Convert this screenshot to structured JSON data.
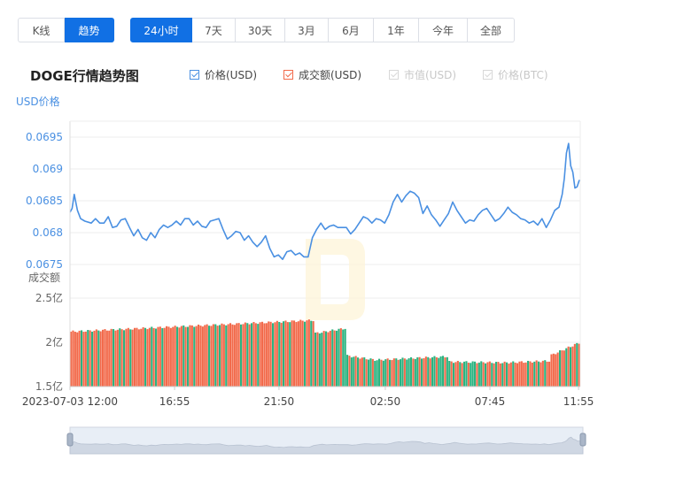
{
  "mode_tabs": [
    {
      "label": "K线",
      "active": false
    },
    {
      "label": "趋势",
      "active": true
    }
  ],
  "range_tabs": [
    {
      "label": "24小时",
      "active": true
    },
    {
      "label": "7天",
      "active": false
    },
    {
      "label": "30天",
      "active": false
    },
    {
      "label": "3月",
      "active": false
    },
    {
      "label": "6月",
      "active": false
    },
    {
      "label": "1年",
      "active": false
    },
    {
      "label": "今年",
      "active": false
    },
    {
      "label": "全部",
      "active": false
    }
  ],
  "colors": {
    "price_line": "#4a90e2",
    "volume_up": "#2bb380",
    "volume_down": "#f26a4b",
    "accent": "#1170e4"
  },
  "chart_data": {
    "title": "DOGE行情趋势图",
    "type": "line",
    "legend": [
      {
        "label": "价格(USD)",
        "checked": true,
        "color": "#4a90e2"
      },
      {
        "label": "成交额(USD)",
        "checked": true,
        "color": "#f26a4b"
      },
      {
        "label": "市值(USD)",
        "checked": false,
        "color": "#cccccc"
      },
      {
        "label": "价格(BTC)",
        "checked": false,
        "color": "#cccccc"
      }
    ],
    "price_axis": {
      "label": "USD价格",
      "ticks": [
        "0.0695",
        "0.069",
        "0.0685",
        "0.068",
        "0.0675"
      ],
      "range": [
        0.06725,
        0.06975
      ]
    },
    "volume_axis": {
      "label": "成交额",
      "ticks": [
        "2.5亿",
        "2亿",
        "1.5亿"
      ],
      "range": [
        1.5,
        2.5
      ]
    },
    "x_ticks": [
      "2023-07-03 12:00",
      "16:55",
      "21:50",
      "02:50",
      "07:45",
      "11:55"
    ],
    "x_range_hours": [
      0,
      24
    ],
    "x_tick_hours": [
      0,
      4.92,
      9.83,
      14.83,
      19.75,
      23.92
    ],
    "price_series": [
      [
        0.0,
        0.06832
      ],
      [
        0.1,
        0.06838
      ],
      [
        0.2,
        0.0686
      ],
      [
        0.35,
        0.06835
      ],
      [
        0.5,
        0.06822
      ],
      [
        0.7,
        0.06818
      ],
      [
        1.0,
        0.06815
      ],
      [
        1.2,
        0.06822
      ],
      [
        1.4,
        0.06815
      ],
      [
        1.6,
        0.06815
      ],
      [
        1.8,
        0.06825
      ],
      [
        2.0,
        0.06808
      ],
      [
        2.2,
        0.0681
      ],
      [
        2.4,
        0.0682
      ],
      [
        2.6,
        0.06822
      ],
      [
        2.8,
        0.06808
      ],
      [
        3.0,
        0.06795
      ],
      [
        3.2,
        0.06805
      ],
      [
        3.4,
        0.06792
      ],
      [
        3.6,
        0.06788
      ],
      [
        3.8,
        0.068
      ],
      [
        4.0,
        0.06792
      ],
      [
        4.2,
        0.06805
      ],
      [
        4.4,
        0.06812
      ],
      [
        4.6,
        0.06808
      ],
      [
        4.8,
        0.06812
      ],
      [
        5.0,
        0.06818
      ],
      [
        5.2,
        0.06812
      ],
      [
        5.4,
        0.06822
      ],
      [
        5.6,
        0.06822
      ],
      [
        5.8,
        0.06812
      ],
      [
        6.0,
        0.06818
      ],
      [
        6.2,
        0.0681
      ],
      [
        6.4,
        0.06808
      ],
      [
        6.6,
        0.06818
      ],
      [
        6.8,
        0.0682
      ],
      [
        7.0,
        0.06822
      ],
      [
        7.2,
        0.06805
      ],
      [
        7.4,
        0.0679
      ],
      [
        7.6,
        0.06795
      ],
      [
        7.8,
        0.06802
      ],
      [
        8.0,
        0.068
      ],
      [
        8.2,
        0.06788
      ],
      [
        8.4,
        0.06795
      ],
      [
        8.6,
        0.06785
      ],
      [
        8.8,
        0.06778
      ],
      [
        9.0,
        0.06785
      ],
      [
        9.2,
        0.06795
      ],
      [
        9.4,
        0.06775
      ],
      [
        9.6,
        0.06762
      ],
      [
        9.8,
        0.06765
      ],
      [
        10.0,
        0.06758
      ],
      [
        10.2,
        0.0677
      ],
      [
        10.4,
        0.06772
      ],
      [
        10.6,
        0.06765
      ],
      [
        10.8,
        0.06768
      ],
      [
        11.0,
        0.06762
      ],
      [
        11.2,
        0.06762
      ],
      [
        11.4,
        0.06792
      ],
      [
        11.6,
        0.06805
      ],
      [
        11.8,
        0.06815
      ],
      [
        12.0,
        0.06805
      ],
      [
        12.2,
        0.0681
      ],
      [
        12.4,
        0.06812
      ],
      [
        12.6,
        0.06808
      ],
      [
        12.8,
        0.06808
      ],
      [
        13.0,
        0.06808
      ],
      [
        13.2,
        0.06798
      ],
      [
        13.4,
        0.06805
      ],
      [
        13.6,
        0.06815
      ],
      [
        13.8,
        0.06825
      ],
      [
        14.0,
        0.06822
      ],
      [
        14.2,
        0.06815
      ],
      [
        14.4,
        0.06822
      ],
      [
        14.6,
        0.0682
      ],
      [
        14.8,
        0.06815
      ],
      [
        15.0,
        0.06828
      ],
      [
        15.2,
        0.06848
      ],
      [
        15.4,
        0.0686
      ],
      [
        15.6,
        0.06848
      ],
      [
        15.8,
        0.06858
      ],
      [
        16.0,
        0.06865
      ],
      [
        16.2,
        0.06862
      ],
      [
        16.4,
        0.06855
      ],
      [
        16.6,
        0.0683
      ],
      [
        16.8,
        0.06842
      ],
      [
        17.0,
        0.06828
      ],
      [
        17.2,
        0.0682
      ],
      [
        17.4,
        0.0681
      ],
      [
        17.6,
        0.0682
      ],
      [
        17.8,
        0.0683
      ],
      [
        18.0,
        0.06848
      ],
      [
        18.2,
        0.06835
      ],
      [
        18.4,
        0.06825
      ],
      [
        18.6,
        0.06815
      ],
      [
        18.8,
        0.0682
      ],
      [
        19.0,
        0.06818
      ],
      [
        19.2,
        0.06828
      ],
      [
        19.4,
        0.06835
      ],
      [
        19.6,
        0.06838
      ],
      [
        19.8,
        0.06828
      ],
      [
        20.0,
        0.06818
      ],
      [
        20.2,
        0.06822
      ],
      [
        20.4,
        0.0683
      ],
      [
        20.6,
        0.0684
      ],
      [
        20.8,
        0.06832
      ],
      [
        21.0,
        0.06828
      ],
      [
        21.2,
        0.06822
      ],
      [
        21.4,
        0.0682
      ],
      [
        21.6,
        0.06815
      ],
      [
        21.8,
        0.06818
      ],
      [
        22.0,
        0.06812
      ],
      [
        22.2,
        0.06822
      ],
      [
        22.4,
        0.06808
      ],
      [
        22.6,
        0.0682
      ],
      [
        22.8,
        0.06835
      ],
      [
        23.0,
        0.0684
      ],
      [
        23.15,
        0.0686
      ],
      [
        23.25,
        0.06885
      ],
      [
        23.35,
        0.06925
      ],
      [
        23.45,
        0.0694
      ],
      [
        23.55,
        0.06905
      ],
      [
        23.65,
        0.06895
      ],
      [
        23.75,
        0.0687
      ],
      [
        23.85,
        0.06872
      ],
      [
        23.95,
        0.06882
      ],
      [
        24.0,
        0.06882
      ]
    ],
    "volume_segments": [
      {
        "from": 0.0,
        "to": 11.5,
        "start": 2.12,
        "end": 2.25
      },
      {
        "from": 11.5,
        "to": 13.0,
        "start": 2.1,
        "end": 2.16
      },
      {
        "from": 13.0,
        "to": 14.4,
        "start": 1.85,
        "end": 1.8
      },
      {
        "from": 14.4,
        "to": 17.8,
        "start": 1.8,
        "end": 1.84
      },
      {
        "from": 17.8,
        "to": 20.5,
        "start": 1.78,
        "end": 1.77
      },
      {
        "from": 20.5,
        "to": 22.6,
        "start": 1.77,
        "end": 1.79
      },
      {
        "from": 22.6,
        "to": 24.0,
        "start": 1.85,
        "end": 2.0
      }
    ],
    "grid": true
  },
  "watermark": "logo"
}
